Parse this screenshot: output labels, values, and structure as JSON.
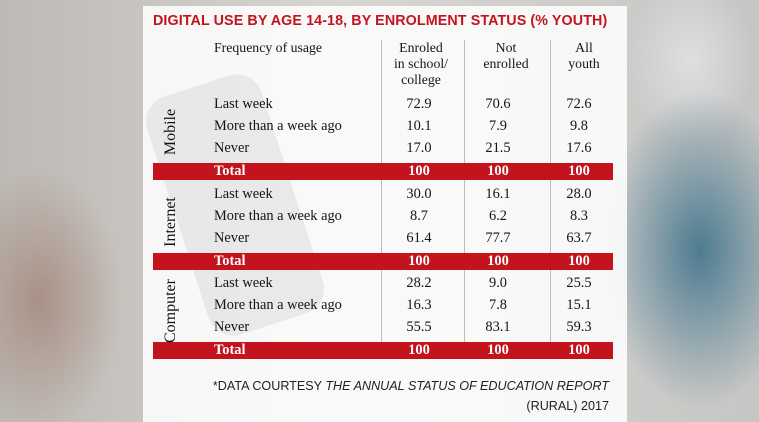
{
  "chart_data": {
    "type": "table",
    "title": "DIGITAL USE BY AGE 14-18, BY ENROLMENT STATUS (% YOUTH)",
    "column_headers": {
      "label": "Frequency of usage",
      "enrolled": [
        "Enroled",
        "in school/",
        "college"
      ],
      "not_enrolled": [
        "Not",
        "enrolled"
      ],
      "all_youth": [
        "All",
        "youth"
      ]
    },
    "groups": [
      {
        "name": "Mobile",
        "rows": [
          {
            "label": "Last week",
            "enrolled": "72.9",
            "not_enrolled": "70.6",
            "all": "72.6"
          },
          {
            "label": "More than a week ago",
            "enrolled": "10.1",
            "not_enrolled": "7.9",
            "all": "9.8"
          },
          {
            "label": "Never",
            "enrolled": "17.0",
            "not_enrolled": "21.5",
            "all": "17.6"
          },
          {
            "label": "Total",
            "enrolled": "100",
            "not_enrolled": "100",
            "all": "100"
          }
        ]
      },
      {
        "name": "Internet",
        "rows": [
          {
            "label": "Last week",
            "enrolled": "30.0",
            "not_enrolled": "16.1",
            "all": "28.0"
          },
          {
            "label": "More than a week ago",
            "enrolled": "8.7",
            "not_enrolled": "6.2",
            "all": "8.3"
          },
          {
            "label": "Never",
            "enrolled": "61.4",
            "not_enrolled": "77.7",
            "all": "63.7"
          },
          {
            "label": "Total",
            "enrolled": "100",
            "not_enrolled": "100",
            "all": "100"
          }
        ]
      },
      {
        "name": "Computer",
        "rows": [
          {
            "label": "Last week",
            "enrolled": "28.2",
            "not_enrolled": "9.0",
            "all": "25.5"
          },
          {
            "label": "More than a week ago",
            "enrolled": "16.3",
            "not_enrolled": "7.8",
            "all": "15.1"
          },
          {
            "label": "Never",
            "enrolled": "55.5",
            "not_enrolled": "83.1",
            "all": "59.3"
          },
          {
            "label": "Total",
            "enrolled": "100",
            "not_enrolled": "100",
            "all": "100"
          }
        ]
      }
    ],
    "source": {
      "prefix": "*DATA COURTESY ",
      "report": "THE ANNUAL STATUS OF EDUCATION REPORT",
      "suffix": "(RURAL) 2017"
    },
    "colors": {
      "accent": "#c3141e",
      "panel": "#ffffff",
      "backdrop_blue": "#376e87"
    }
  }
}
